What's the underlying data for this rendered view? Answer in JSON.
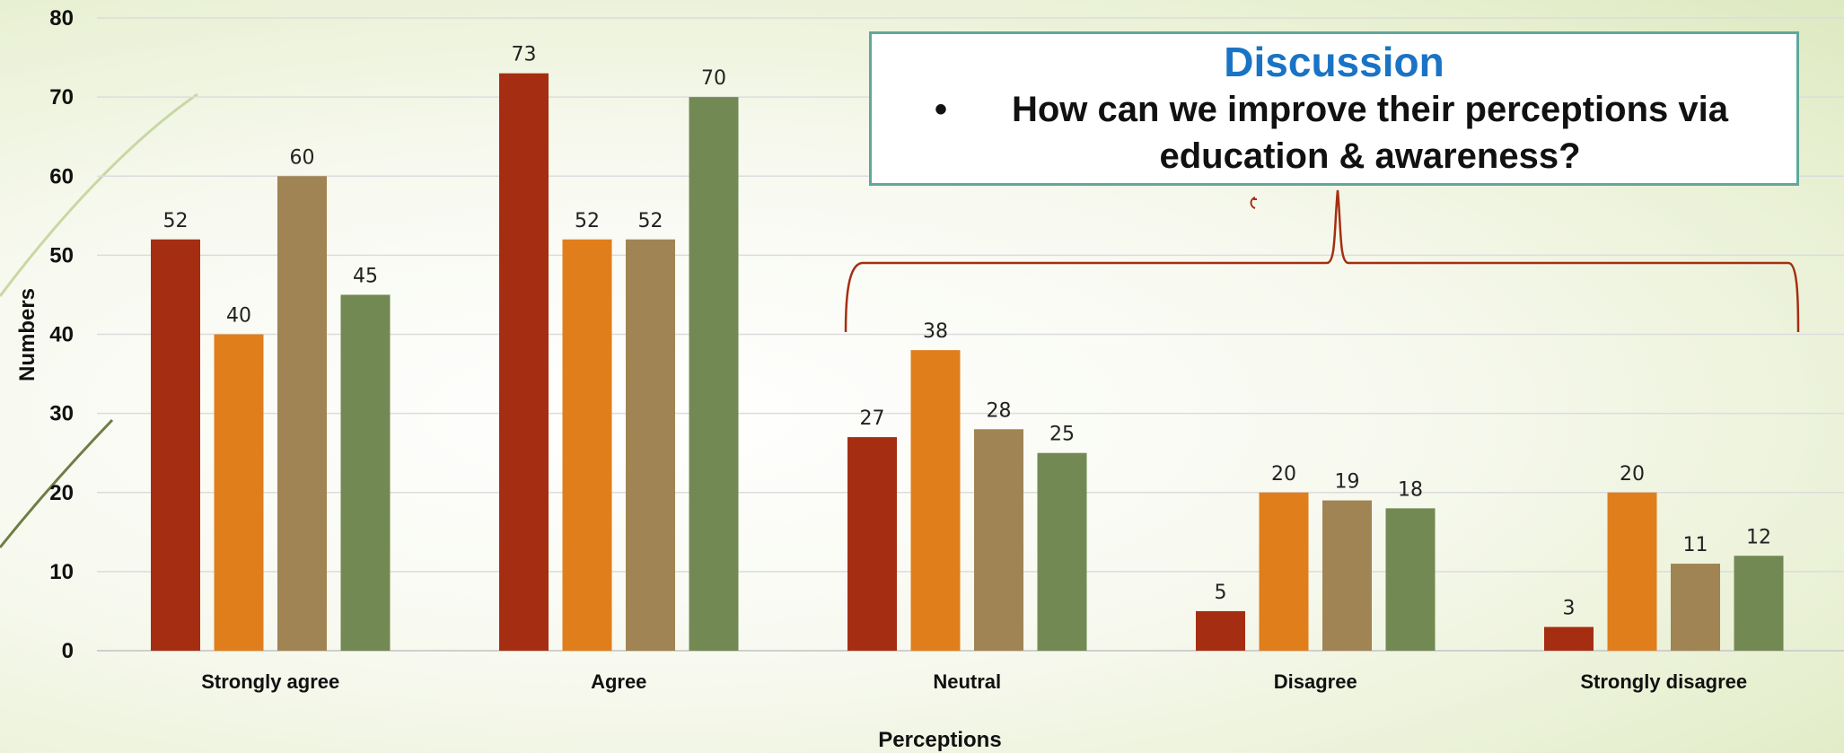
{
  "chart_data": {
    "type": "bar",
    "categories": [
      "Strongly agree",
      "Agree",
      "Neutral",
      "Disagree",
      "Strongly disagree"
    ],
    "series": [
      {
        "values": [
          52,
          73,
          27,
          5,
          3
        ],
        "color": "#a52e12"
      },
      {
        "values": [
          40,
          52,
          38,
          20,
          20
        ],
        "color": "#e07e1c"
      },
      {
        "values": [
          60,
          52,
          28,
          19,
          11
        ],
        "color": "#a08453"
      },
      {
        "values": [
          45,
          70,
          25,
          18,
          12
        ],
        "color": "#728954"
      }
    ],
    "xlabel": "Perceptions",
    "ylabel": "Numbers",
    "ylim": [
      0,
      80
    ],
    "yticks": [
      0,
      10,
      20,
      30,
      40,
      50,
      60,
      70,
      80
    ],
    "grid": true,
    "legend": "none"
  },
  "callout": {
    "title": "Discussion",
    "bullet": "•",
    "text": "How can we improve their perceptions via education & awareness?",
    "border_color": "#5fa89a",
    "title_color": "#1a73c4"
  },
  "brace": {
    "color": "#a52e12"
  }
}
